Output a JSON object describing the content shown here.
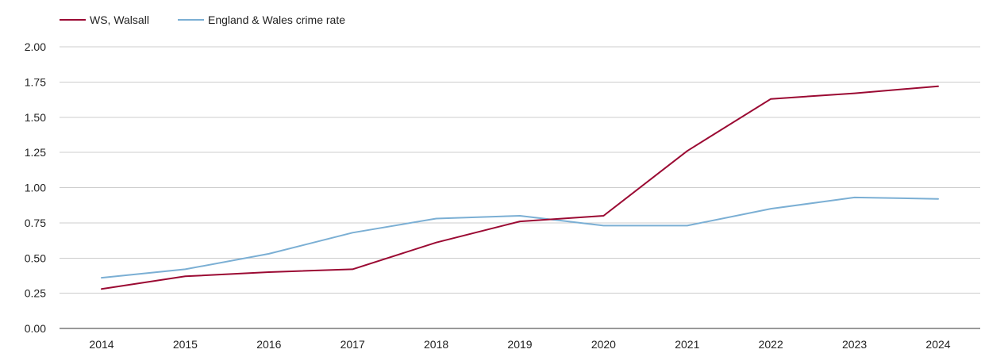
{
  "chart_data": {
    "type": "line",
    "title": "",
    "xlabel": "",
    "ylabel": "",
    "categories": [
      "2014",
      "2015",
      "2016",
      "2017",
      "2018",
      "2019",
      "2020",
      "2021",
      "2022",
      "2023",
      "2024"
    ],
    "ylim": [
      0,
      2
    ],
    "yticks": [
      "0.00",
      "0.25",
      "0.50",
      "0.75",
      "1.00",
      "1.25",
      "1.50",
      "1.75",
      "2.00"
    ],
    "grid": true,
    "legend_position": "top-left",
    "series": [
      {
        "name": "WS, Walsall",
        "color": "#9b0a33",
        "values": [
          0.28,
          0.37,
          0.4,
          0.42,
          0.61,
          0.76,
          0.8,
          1.26,
          1.63,
          1.67,
          1.72
        ]
      },
      {
        "name": "England & Wales crime rate",
        "color": "#7bafd4",
        "values": [
          0.36,
          0.42,
          0.53,
          0.68,
          0.78,
          0.8,
          0.73,
          0.73,
          0.85,
          0.93,
          0.92
        ]
      }
    ]
  }
}
